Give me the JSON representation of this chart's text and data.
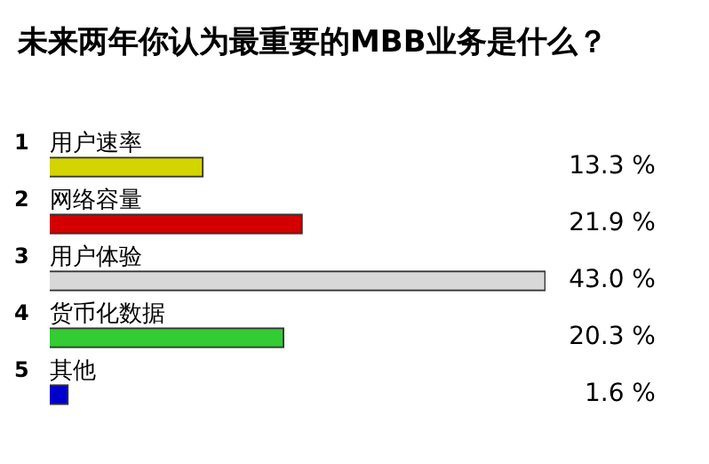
{
  "chart_data": {
    "type": "bar",
    "title": "未来两年你认为最重要的MBB业务是什么？",
    "orientation": "horizontal",
    "categories": [
      "用户速率",
      "网络容量",
      "用户体验",
      "货币化数据",
      "其他"
    ],
    "values": [
      13.3,
      21.9,
      43.0,
      20.3,
      1.6
    ],
    "colors": [
      "#d4d400",
      "#d40000",
      "#d8d8d8",
      "#33cc33",
      "#0000cc"
    ],
    "value_labels": [
      "13.3 %",
      "21.9 %",
      "43.0 %",
      "20.3 %",
      "1.6 %"
    ],
    "annotations": [
      "1",
      "2",
      "3",
      "4",
      "5"
    ]
  }
}
